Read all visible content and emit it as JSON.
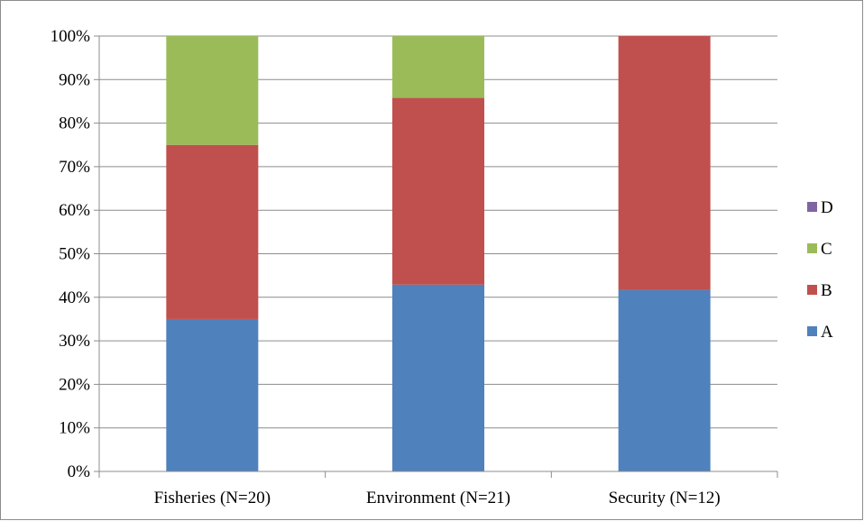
{
  "chart_data": {
    "type": "bar",
    "stacked": true,
    "percent_stacked": true,
    "categories": [
      "Fisheries (N=20)",
      "Environment (N=21)",
      "Security (N=12)"
    ],
    "series": [
      {
        "name": "A",
        "values": [
          35,
          42.9,
          41.7
        ],
        "color": "#4F81BD"
      },
      {
        "name": "B",
        "values": [
          40,
          42.9,
          58.3
        ],
        "color": "#C0504D"
      },
      {
        "name": "C",
        "values": [
          25,
          14.2,
          0
        ],
        "color": "#9BBB59"
      },
      {
        "name": "D",
        "values": [
          0,
          0,
          0
        ],
        "color": "#8064A2"
      }
    ],
    "yticks": [
      "0%",
      "10%",
      "20%",
      "30%",
      "40%",
      "50%",
      "60%",
      "70%",
      "80%",
      "90%",
      "100%"
    ],
    "ylim": [
      0,
      100
    ],
    "grid": true,
    "legend_position": "right",
    "title": "",
    "xlabel": "",
    "ylabel": ""
  }
}
